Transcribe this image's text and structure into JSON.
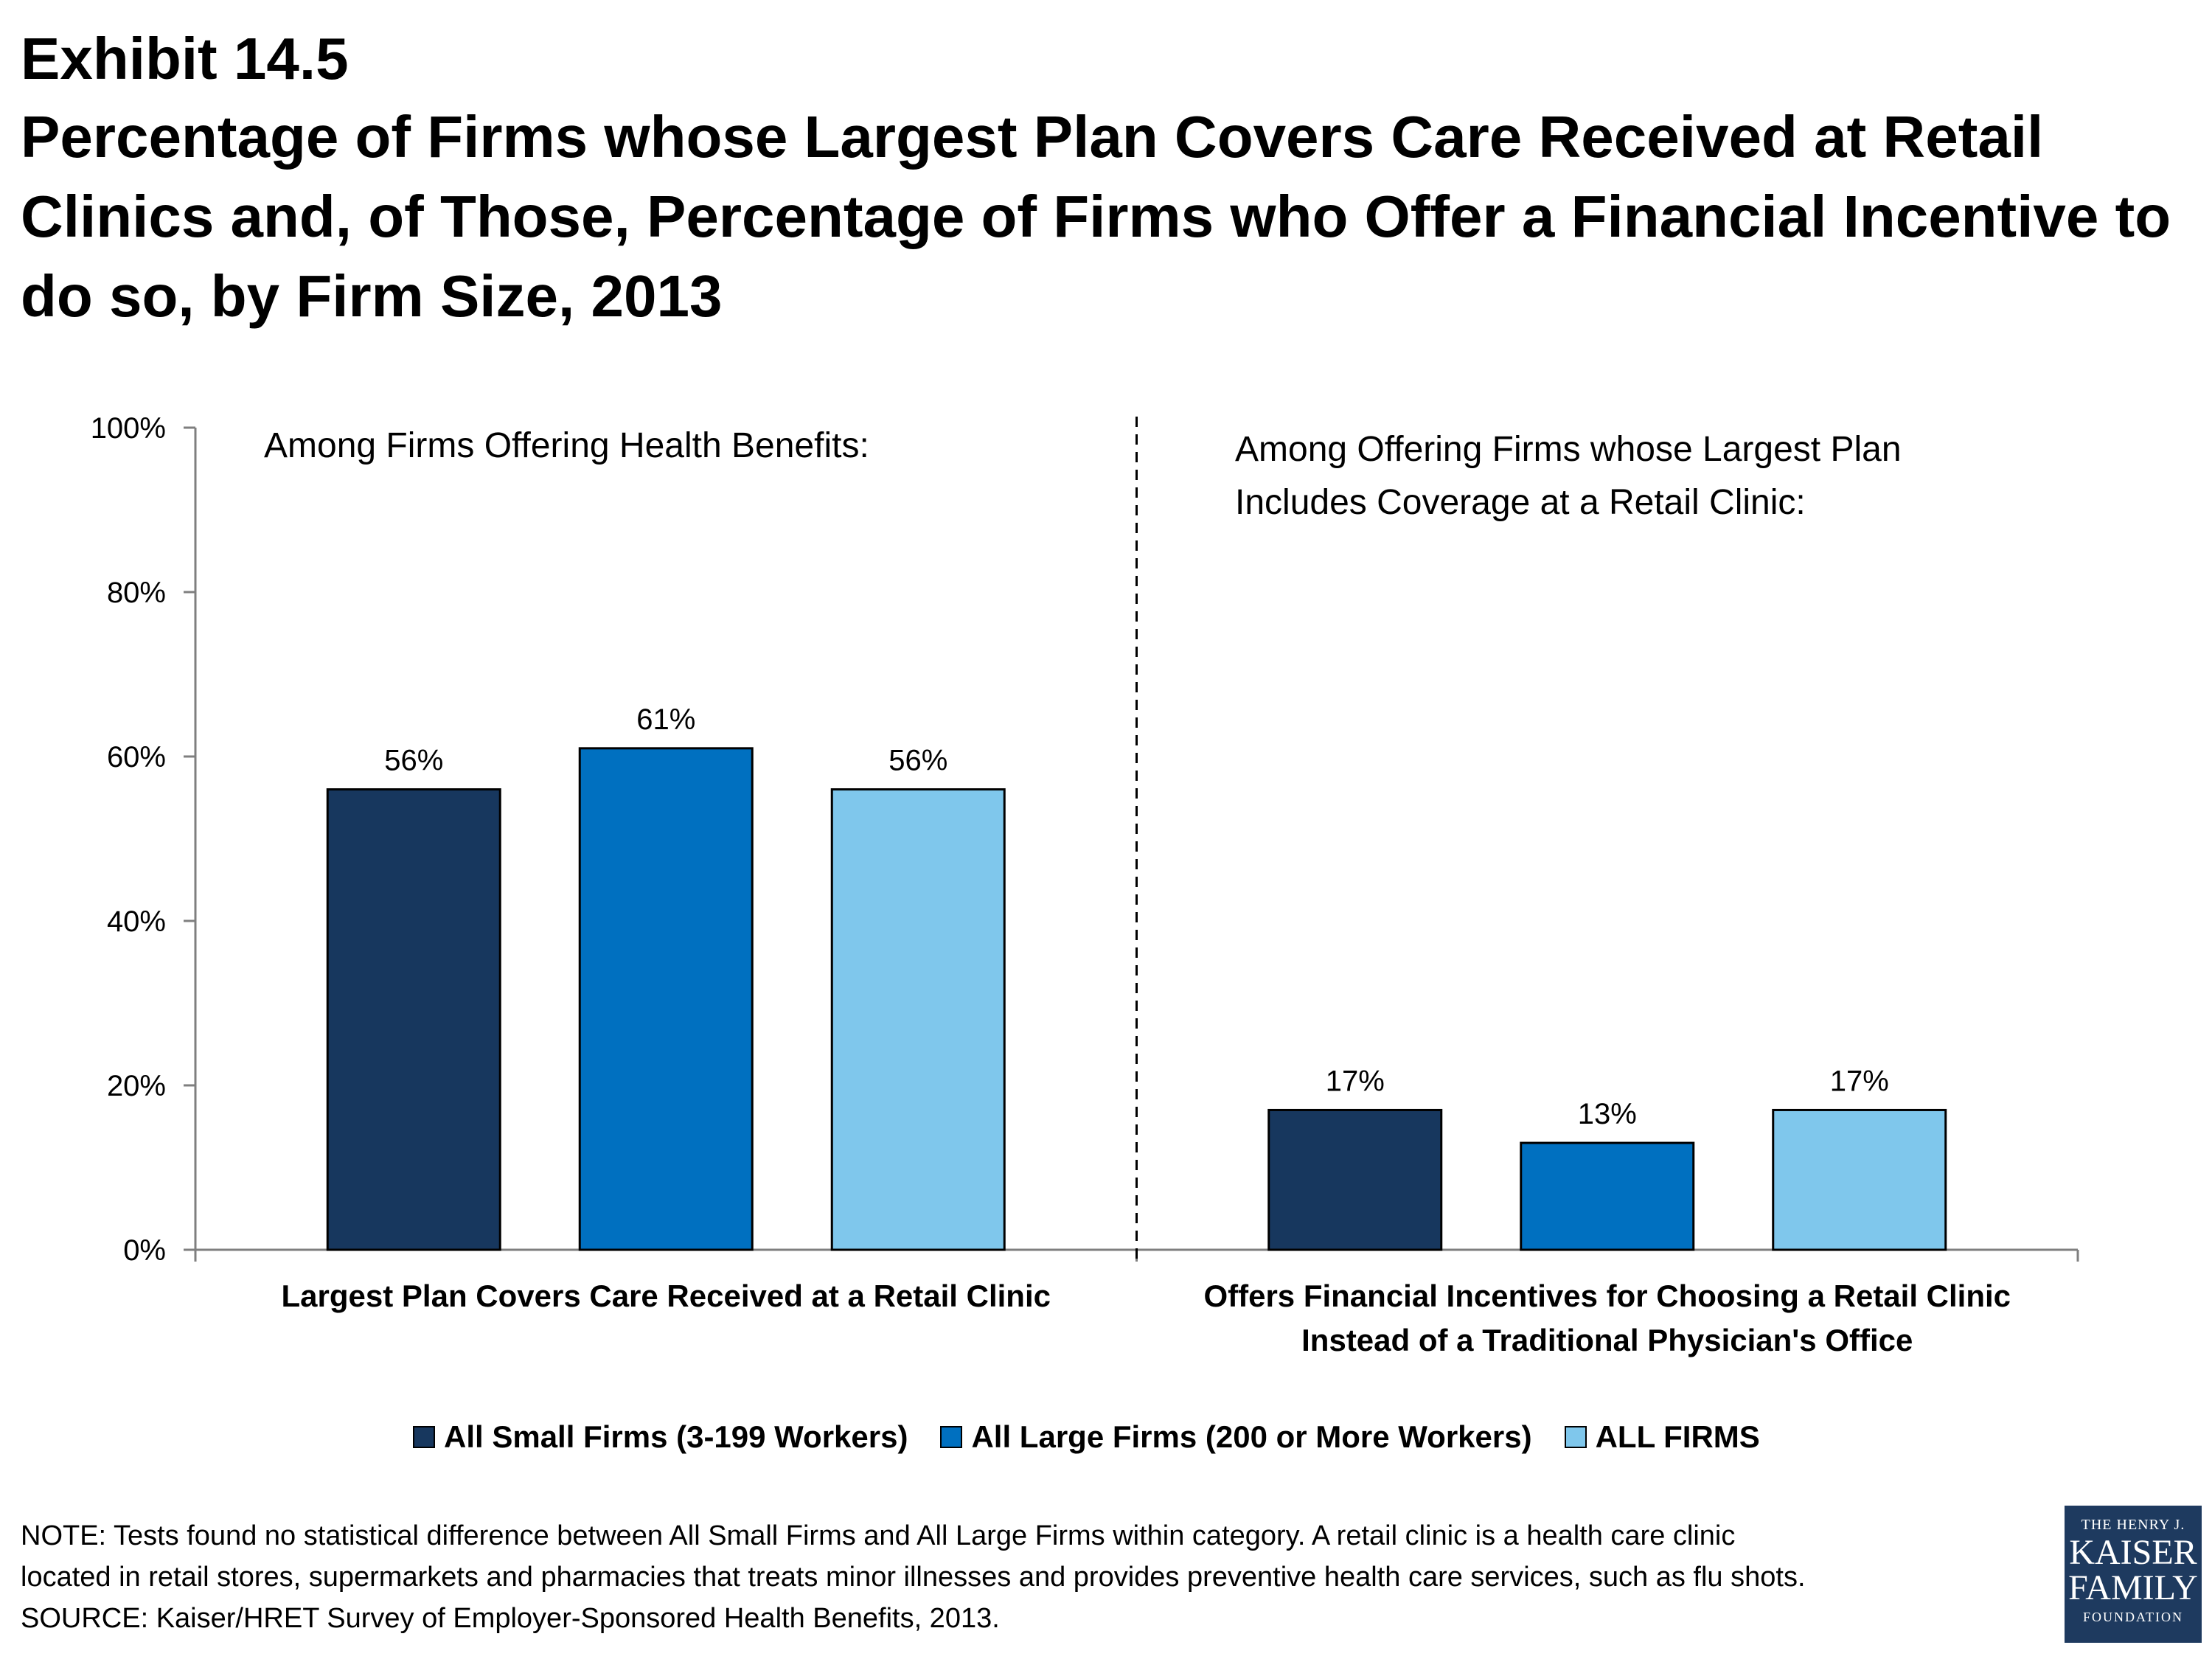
{
  "header": {
    "exhibit": "Exhibit 14.5",
    "title": "Percentage of Firms whose Largest Plan Covers Care Received at Retail Clinics and, of Those, Percentage of Firms who Offer a Financial Incentive to do so, by Firm Size, 2013"
  },
  "chart_data": {
    "type": "bar",
    "ylim": [
      0,
      100
    ],
    "yticks": [
      "0%",
      "20%",
      "40%",
      "60%",
      "80%",
      "100%"
    ],
    "grid": false,
    "legend_position": "bottom",
    "panel_labels": [
      [
        "Among Firms Offering Health Benefits:"
      ],
      [
        "Among Offering Firms whose Largest Plan",
        "Includes  Coverage at a Retail Clinic:"
      ]
    ],
    "categories": [
      [
        "Largest Plan Covers Care Received at a Retail Clinic"
      ],
      [
        "Offers Financial Incentives for Choosing a Retail Clinic",
        "Instead of a Traditional Physician's Office"
      ]
    ],
    "series": [
      {
        "name": "All Small Firms (3-199 Workers)",
        "color": "#17375e",
        "values": [
          56,
          17
        ],
        "labels": [
          "56%",
          "17%"
        ]
      },
      {
        "name": "All Large Firms (200 or More Workers)",
        "color": "#0070c0",
        "values": [
          61,
          13
        ],
        "labels": [
          "61%",
          "13%"
        ]
      },
      {
        "name": "ALL FIRMS",
        "color": "#7fc7ec",
        "values": [
          56,
          17
        ],
        "labels": [
          "56%",
          "17%"
        ]
      }
    ]
  },
  "note": {
    "line1": "NOTE: Tests found no statistical difference between All Small Firms and All Large Firms within category. A retail clinic is a health care clinic",
    "line2": "located in retail stores, supermarkets and pharmacies that treats minor illnesses and provides preventive health care services, such as flu shots.",
    "source": "SOURCE: Kaiser/HRET Survey of Employer-Sponsored Health Benefits, 2013."
  },
  "logo": {
    "line1": "THE HENRY J.",
    "line2": "KAISER",
    "line3": "FAMILY",
    "line4": "FOUNDATION"
  }
}
